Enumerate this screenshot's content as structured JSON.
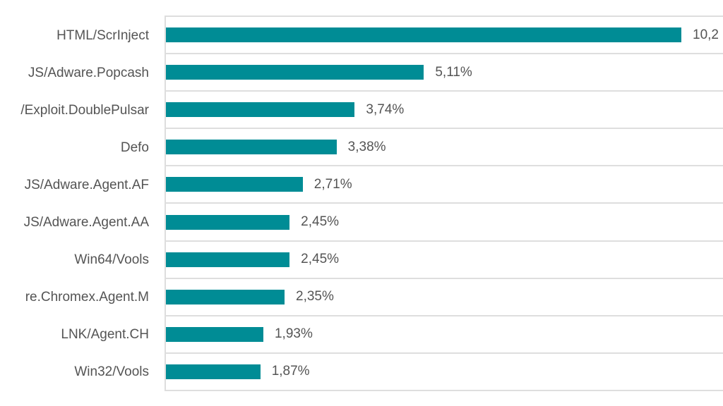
{
  "chart_data": {
    "type": "bar",
    "orientation": "horizontal",
    "title": "",
    "xlabel": "",
    "ylabel": "",
    "categories": [
      "HTML/ScrInject",
      "JS/Adware.Popcash",
      "/Exploit.DoublePulsar",
      "Defo",
      "JS/Adware.Agent.AF",
      "JS/Adware.Agent.AA",
      "Win64/Vools",
      "re.Chromex.Agent.M",
      "LNK/Agent.CH",
      "Win32/Vools"
    ],
    "values": [
      10.21,
      5.11,
      3.74,
      3.38,
      2.71,
      2.45,
      2.45,
      2.35,
      1.93,
      1.87
    ],
    "value_labels": [
      "10,2",
      "5,11%",
      "3,74%",
      "3,38%",
      "2,71%",
      "2,45%",
      "2,45%",
      "2,35%",
      "1,93%",
      "1,87%"
    ],
    "xlim": [
      0,
      11.06
    ],
    "grid": "horizontal-category-lines",
    "legend": "none",
    "bar_color": "#008c95",
    "label_color": "#545454",
    "gridline_color": "#dedede"
  }
}
